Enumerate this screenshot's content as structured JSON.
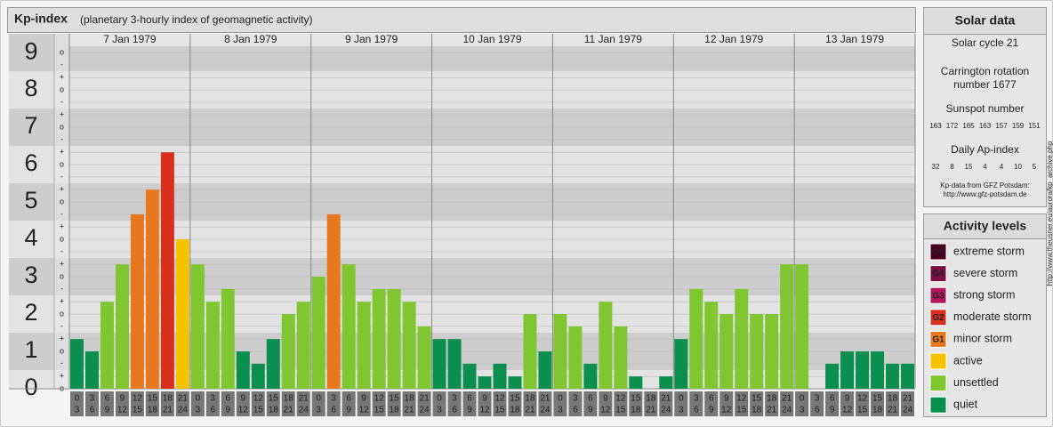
{
  "header": {
    "title": "Kp-index",
    "subtitle": "(planetary 3-hourly index of geomagnetic activity)"
  },
  "chart_data": {
    "type": "bar",
    "categories": [
      "7 Jan 1979",
      "8 Jan 1979",
      "9 Jan 1979",
      "10 Jan 1979",
      "11 Jan 1979",
      "12 Jan 1979",
      "13 Jan 1979"
    ],
    "hour_bins": [
      0,
      3,
      6,
      9,
      12,
      15,
      18,
      21,
      24
    ],
    "values": [
      [
        1.33,
        1,
        2.33,
        3.33,
        4.67,
        5.33,
        6.33,
        4
      ],
      [
        3.33,
        2.33,
        2.67,
        1,
        0.67,
        1.33,
        2,
        2.33
      ],
      [
        3,
        4.67,
        3.33,
        2.33,
        2.67,
        2.67,
        2.33,
        1.67
      ],
      [
        1.33,
        1.33,
        0.67,
        0.33,
        0.67,
        0.33,
        2,
        1
      ],
      [
        2,
        1.67,
        0.67,
        2.33,
        1.67,
        0.33,
        0,
        0.33
      ],
      [
        1.33,
        2.67,
        2.33,
        2,
        2.67,
        2,
        2,
        3.33
      ],
      [
        3.33,
        0,
        0.67,
        1,
        1,
        1,
        0.67,
        0.67
      ]
    ],
    "colors": [
      [
        "#0b8f4e",
        "#0b8f4e",
        "#7fc631",
        "#7fc631",
        "#e8781e",
        "#e8781e",
        "#d9301e",
        "#f7c200"
      ],
      [
        "#7fc631",
        "#7fc631",
        "#7fc631",
        "#0b8f4e",
        "#0b8f4e",
        "#0b8f4e",
        "#7fc631",
        "#7fc631"
      ],
      [
        "#7fc631",
        "#e8781e",
        "#7fc631",
        "#7fc631",
        "#7fc631",
        "#7fc631",
        "#7fc631",
        "#7fc631"
      ],
      [
        "#0b8f4e",
        "#0b8f4e",
        "#0b8f4e",
        "#0b8f4e",
        "#0b8f4e",
        "#0b8f4e",
        "#7fc631",
        "#0b8f4e"
      ],
      [
        "#7fc631",
        "#7fc631",
        "#0b8f4e",
        "#7fc631",
        "#7fc631",
        "#0b8f4e",
        "#0b8f4e",
        "#0b8f4e"
      ],
      [
        "#0b8f4e",
        "#7fc631",
        "#7fc631",
        "#7fc631",
        "#7fc631",
        "#7fc631",
        "#7fc631",
        "#7fc631"
      ],
      [
        "#7fc631",
        "#0b8f4e",
        "#0b8f4e",
        "#0b8f4e",
        "#0b8f4e",
        "#0b8f4e",
        "#0b8f4e",
        "#0b8f4e"
      ]
    ],
    "ylim": [
      0,
      9.17
    ],
    "yticks": [
      0,
      1,
      2,
      3,
      4,
      5,
      6,
      7,
      8,
      9
    ],
    "yminor_ticks": [
      {
        "value": 0,
        "label": "o"
      },
      {
        "value": 0.33,
        "label": "+"
      },
      {
        "value": 0.67,
        "label": "-"
      },
      {
        "value": 1,
        "label": "o"
      },
      {
        "value": 1.33,
        "label": "+"
      },
      {
        "value": 1.67,
        "label": "-"
      },
      {
        "value": 2,
        "label": "o"
      },
      {
        "value": 2.33,
        "label": "+"
      },
      {
        "value": 2.67,
        "label": "-"
      },
      {
        "value": 3,
        "label": "o"
      },
      {
        "value": 3.33,
        "label": "+"
      },
      {
        "value": 3.67,
        "label": "-"
      },
      {
        "value": 4,
        "label": "o"
      },
      {
        "value": 4.33,
        "label": "+"
      },
      {
        "value": 4.67,
        "label": "-"
      },
      {
        "value": 5,
        "label": "o"
      },
      {
        "value": 5.33,
        "label": "+"
      },
      {
        "value": 5.67,
        "label": "-"
      },
      {
        "value": 6,
        "label": "o"
      },
      {
        "value": 6.33,
        "label": "+"
      },
      {
        "value": 6.67,
        "label": "-"
      },
      {
        "value": 7,
        "label": "o"
      },
      {
        "value": 7.33,
        "label": "+"
      },
      {
        "value": 7.67,
        "label": "-"
      },
      {
        "value": 8,
        "label": "o"
      },
      {
        "value": 8.33,
        "label": "+"
      },
      {
        "value": 8.67,
        "label": "-"
      },
      {
        "value": 9,
        "label": "o"
      }
    ],
    "grid": true
  },
  "solar_data": {
    "title": "Solar data",
    "cycle": "Solar cycle 21",
    "carrington": [
      "Carrington rotation",
      "number 1677"
    ],
    "sunspot_title": "Sunspot number",
    "sunspot": [
      163,
      172,
      165,
      163,
      157,
      159,
      151
    ],
    "ap_title": "Daily Ap-index",
    "ap": [
      32,
      8,
      15,
      4,
      4,
      10,
      5
    ],
    "credit": "Kp-data from GFZ Potsdam:",
    "url": "http://www.gfz-potsdam.de"
  },
  "activity_levels": {
    "title": "Activity levels",
    "items": [
      {
        "badge": "G5",
        "label": "extreme storm",
        "color": "#4a0022"
      },
      {
        "badge": "G4",
        "label": "severe storm",
        "color": "#7a1040"
      },
      {
        "badge": "G3",
        "label": "strong storm",
        "color": "#b2175e"
      },
      {
        "badge": "G2",
        "label": "moderate storm",
        "color": "#d9301e"
      },
      {
        "badge": "G1",
        "label": "minor storm",
        "color": "#e8781e"
      },
      {
        "label": "active",
        "color": "#f7c200"
      },
      {
        "label": "unsettled",
        "color": "#7fc631"
      },
      {
        "label": "quiet",
        "color": "#0b8f4e"
      }
    ]
  },
  "source_url": "http://www.theusner.eu/aurora/kp_archive.php"
}
